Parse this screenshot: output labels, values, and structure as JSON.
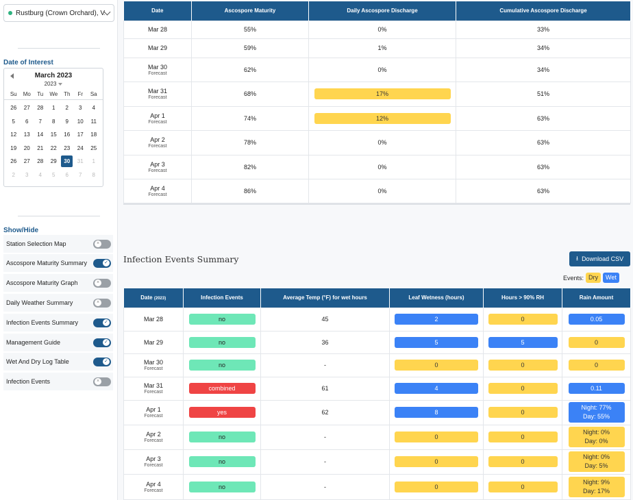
{
  "sidebar": {
    "station": "Rustburg (Crown Orchard), VA",
    "date_of_interest_label": "Date of Interest",
    "calendar": {
      "month": "March 2023",
      "year": "2023",
      "weekdays": [
        "Su",
        "Mo",
        "Tu",
        "We",
        "Th",
        "Fr",
        "Sa"
      ],
      "days": [
        {
          "d": "26",
          "m": false
        },
        {
          "d": "27",
          "m": false
        },
        {
          "d": "28",
          "m": false
        },
        {
          "d": "1",
          "m": false
        },
        {
          "d": "2",
          "m": false
        },
        {
          "d": "3",
          "m": false
        },
        {
          "d": "4",
          "m": false
        },
        {
          "d": "5",
          "m": false
        },
        {
          "d": "6",
          "m": false
        },
        {
          "d": "7",
          "m": false
        },
        {
          "d": "8",
          "m": false
        },
        {
          "d": "9",
          "m": false
        },
        {
          "d": "10",
          "m": false
        },
        {
          "d": "11",
          "m": false
        },
        {
          "d": "12",
          "m": false
        },
        {
          "d": "13",
          "m": false
        },
        {
          "d": "14",
          "m": false
        },
        {
          "d": "15",
          "m": false
        },
        {
          "d": "16",
          "m": false
        },
        {
          "d": "17",
          "m": false
        },
        {
          "d": "18",
          "m": false
        },
        {
          "d": "19",
          "m": false
        },
        {
          "d": "20",
          "m": false
        },
        {
          "d": "21",
          "m": false
        },
        {
          "d": "22",
          "m": false
        },
        {
          "d": "23",
          "m": false
        },
        {
          "d": "24",
          "m": false
        },
        {
          "d": "25",
          "m": false
        },
        {
          "d": "26",
          "m": false
        },
        {
          "d": "27",
          "m": false
        },
        {
          "d": "28",
          "m": false
        },
        {
          "d": "29",
          "m": false
        },
        {
          "d": "30",
          "m": false,
          "sel": true
        },
        {
          "d": "31",
          "m": true
        },
        {
          "d": "1",
          "m": true
        },
        {
          "d": "2",
          "m": true
        },
        {
          "d": "3",
          "m": true
        },
        {
          "d": "4",
          "m": true
        },
        {
          "d": "5",
          "m": true
        },
        {
          "d": "6",
          "m": true
        },
        {
          "d": "7",
          "m": true
        },
        {
          "d": "8",
          "m": true
        }
      ]
    },
    "show_hide_label": "Show/Hide",
    "toggles": [
      {
        "label": "Station Selection Map",
        "on": false
      },
      {
        "label": "Ascospore Maturity Summary",
        "on": true
      },
      {
        "label": "Ascospore Maturity Graph",
        "on": false
      },
      {
        "label": "Daily Weather Summary",
        "on": false
      },
      {
        "label": "Infection Events Summary",
        "on": true
      },
      {
        "label": "Management Guide",
        "on": true
      },
      {
        "label": "Wet And Dry Log Table",
        "on": true
      },
      {
        "label": "Infection Events",
        "on": false
      }
    ]
  },
  "ascospore_table": {
    "headers": [
      "Date",
      "Ascospore Maturity",
      "Daily Ascospore Discharge",
      "Cumulative Ascospore Discharge"
    ],
    "rows": [
      {
        "date": "Mar 28",
        "sub": "",
        "maturity": "55%",
        "daily": "0%",
        "daily_hl": false,
        "cum": "33%"
      },
      {
        "date": "Mar 29",
        "sub": "",
        "maturity": "59%",
        "daily": "1%",
        "daily_hl": false,
        "cum": "34%"
      },
      {
        "date": "Mar 30",
        "sub": "Forecast",
        "maturity": "62%",
        "daily": "0%",
        "daily_hl": false,
        "cum": "34%"
      },
      {
        "date": "Mar 31",
        "sub": "Forecast",
        "maturity": "68%",
        "daily": "17%",
        "daily_hl": true,
        "cum": "51%"
      },
      {
        "date": "Apr 1",
        "sub": "Forecast",
        "maturity": "74%",
        "daily": "12%",
        "daily_hl": true,
        "cum": "63%"
      },
      {
        "date": "Apr 2",
        "sub": "Forecast",
        "maturity": "78%",
        "daily": "0%",
        "daily_hl": false,
        "cum": "63%"
      },
      {
        "date": "Apr 3",
        "sub": "Forecast",
        "maturity": "82%",
        "daily": "0%",
        "daily_hl": false,
        "cum": "63%"
      },
      {
        "date": "Apr 4",
        "sub": "Forecast",
        "maturity": "86%",
        "daily": "0%",
        "daily_hl": false,
        "cum": "63%"
      }
    ]
  },
  "infection": {
    "title": "Infection Events Summary",
    "csv_label": "Download CSV",
    "events_label": "Events:",
    "dry_label": "Dry",
    "wet_label": "Wet",
    "headers": {
      "date": "Date",
      "date_year": "(2023)",
      "events": "Infection Events",
      "temp": "Average Temp (°F) for wet hours",
      "leaf": "Leaf Wetness (hours)",
      "rh": "Hours > 90% RH",
      "rain": "Rain Amount"
    },
    "rows": [
      {
        "date": "Mar 28",
        "sub": "",
        "event": "no",
        "ev": "green",
        "temp": "45",
        "leaf": "2",
        "leaf_c": "blue",
        "rh": "0",
        "rh_c": "yellow",
        "rain": [
          "0.05"
        ],
        "rain_c": "blue"
      },
      {
        "date": "Mar 29",
        "sub": "",
        "event": "no",
        "ev": "green",
        "temp": "36",
        "leaf": "5",
        "leaf_c": "blue",
        "rh": "5",
        "rh_c": "blue",
        "rain": [
          "0"
        ],
        "rain_c": "yellow"
      },
      {
        "date": "Mar 30",
        "sub": "Forecast",
        "event": "no",
        "ev": "green",
        "temp": "-",
        "leaf": "0",
        "leaf_c": "yellow",
        "rh": "0",
        "rh_c": "yellow",
        "rain": [
          "0"
        ],
        "rain_c": "yellow"
      },
      {
        "date": "Mar 31",
        "sub": "Forecast",
        "event": "combined",
        "ev": "red",
        "temp": "61",
        "leaf": "4",
        "leaf_c": "blue",
        "rh": "0",
        "rh_c": "yellow",
        "rain": [
          "0.11"
        ],
        "rain_c": "blue"
      },
      {
        "date": "Apr 1",
        "sub": "Forecast",
        "event": "yes",
        "ev": "red",
        "temp": "62",
        "leaf": "8",
        "leaf_c": "blue",
        "rh": "0",
        "rh_c": "yellow",
        "rain": [
          "Night: 77%",
          "Day: 55%"
        ],
        "rain_c": "blue"
      },
      {
        "date": "Apr 2",
        "sub": "Forecast",
        "event": "no",
        "ev": "green",
        "temp": "-",
        "leaf": "0",
        "leaf_c": "yellow",
        "rh": "0",
        "rh_c": "yellow",
        "rain": [
          "Night: 0%",
          "Day: 0%"
        ],
        "rain_c": "yellow"
      },
      {
        "date": "Apr 3",
        "sub": "Forecast",
        "event": "no",
        "ev": "green",
        "temp": "-",
        "leaf": "0",
        "leaf_c": "yellow",
        "rh": "0",
        "rh_c": "yellow",
        "rain": [
          "Night: 0%",
          "Day: 5%"
        ],
        "rain_c": "yellow"
      },
      {
        "date": "Apr 4",
        "sub": "Forecast",
        "event": "no",
        "ev": "green",
        "temp": "-",
        "leaf": "0",
        "leaf_c": "yellow",
        "rh": "0",
        "rh_c": "yellow",
        "rain": [
          "Night: 9%",
          "Day: 17%"
        ],
        "rain_c": "yellow"
      }
    ]
  }
}
